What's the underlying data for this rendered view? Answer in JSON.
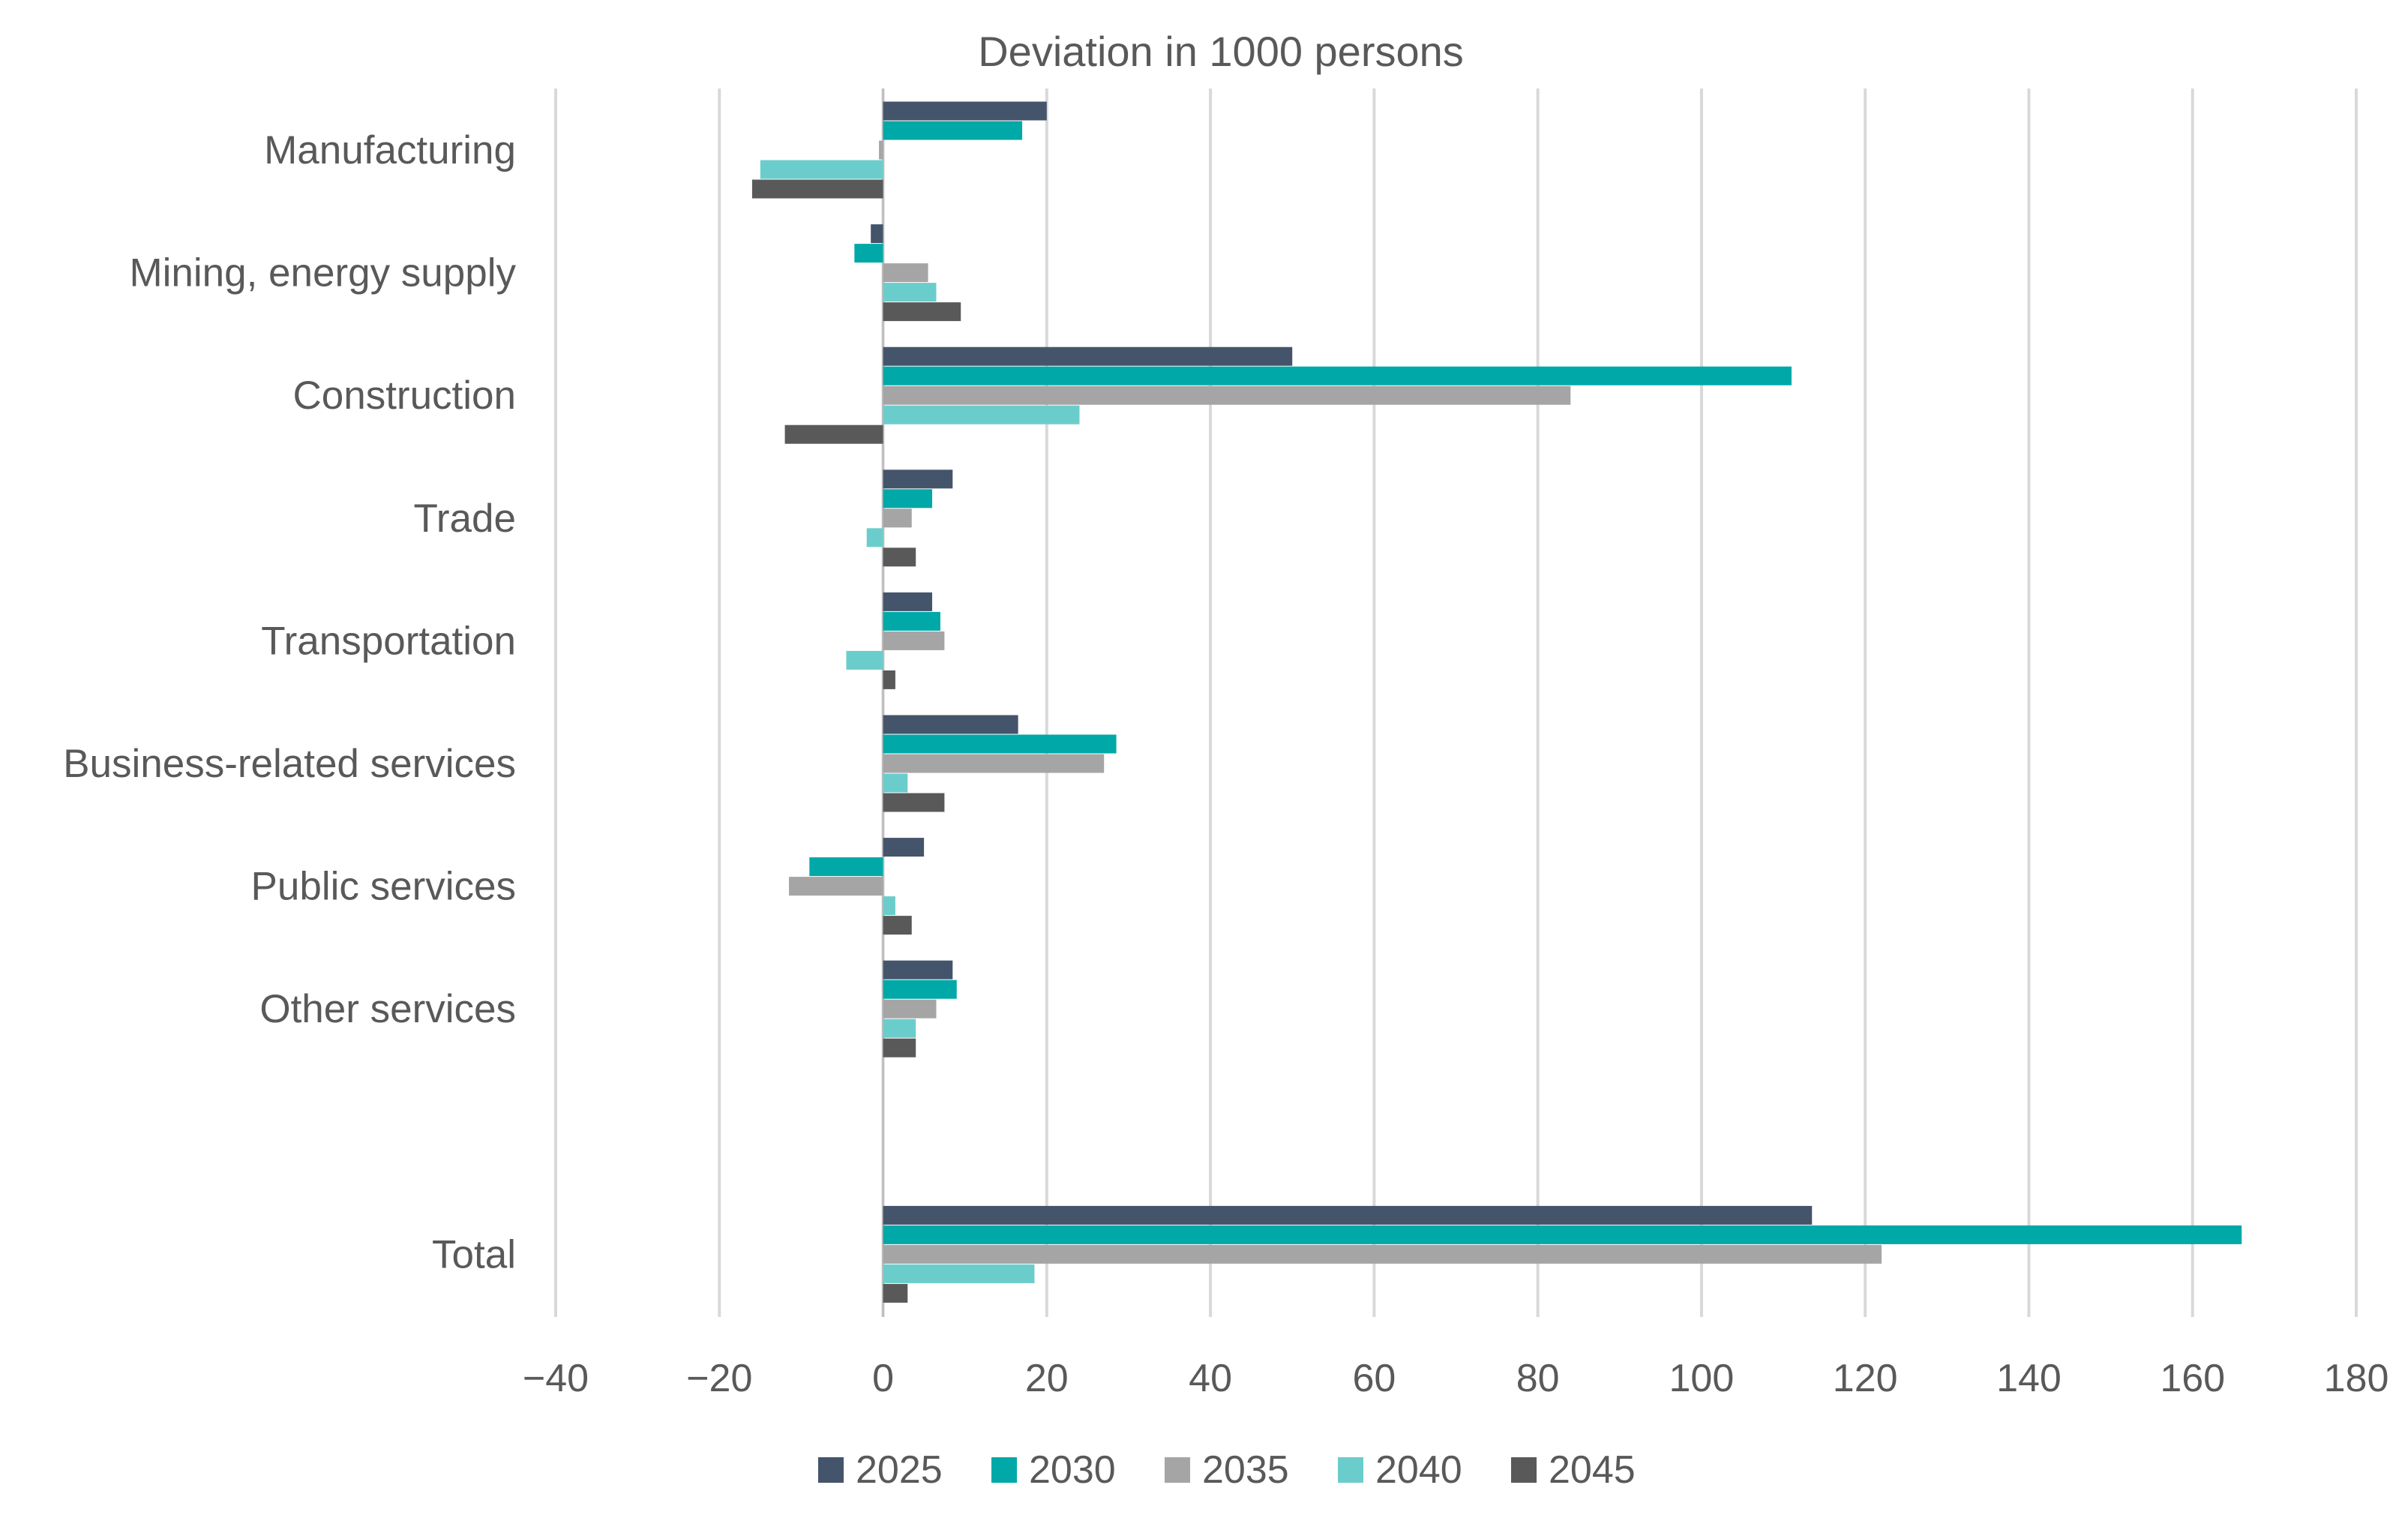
{
  "chart_data": {
    "type": "bar",
    "orientation": "horizontal",
    "title": "Deviation in 1000 persons",
    "xlabel": "",
    "ylabel": "",
    "xlim": [
      -40,
      180
    ],
    "ticks": [
      -40,
      -20,
      0,
      20,
      40,
      60,
      80,
      100,
      120,
      140,
      160,
      180
    ],
    "tick_labels": [
      "−40",
      "−20",
      "0",
      "20",
      "40",
      "60",
      "80",
      "100",
      "120",
      "140",
      "160",
      "180"
    ],
    "grid": true,
    "legend_position": "bottom",
    "categories": [
      "Manufacturing",
      "Mining, energy supply",
      "Construction",
      "Trade",
      "Transportation",
      "Business-related services",
      "Public services",
      "Other services",
      "Total"
    ],
    "series": [
      {
        "name": "2025",
        "color": "#44546A",
        "values": [
          20,
          -1.5,
          50,
          8.5,
          6,
          16.5,
          5,
          8.5,
          113.5
        ]
      },
      {
        "name": "2030",
        "color": "#00A8A8",
        "values": [
          17,
          -3.5,
          111,
          6,
          7,
          28.5,
          -9,
          9,
          166
        ]
      },
      {
        "name": "2035",
        "color": "#A5A5A5",
        "values": [
          -0.5,
          5.5,
          84,
          3.5,
          7.5,
          27,
          -11.5,
          6.5,
          122
        ]
      },
      {
        "name": "2040",
        "color": "#6BCDCB",
        "values": [
          -15,
          6.5,
          24,
          -2,
          -4.5,
          3,
          1.5,
          4,
          18.5
        ]
      },
      {
        "name": "2045",
        "color": "#595959",
        "values": [
          -16,
          9.5,
          -12,
          4,
          1.5,
          7.5,
          3.5,
          4,
          3
        ]
      }
    ]
  }
}
